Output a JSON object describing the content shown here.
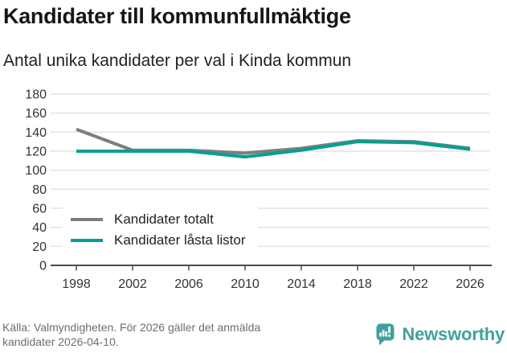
{
  "header": {
    "title": "Kandidater till kommunfullmäktige",
    "subtitle": "Antal unika kandidater per val i Kinda kommun"
  },
  "chart_data": {
    "type": "line",
    "title": "Kandidater till kommunfullmäktige",
    "subtitle": "Antal unika kandidater per val i Kinda kommun",
    "categories": [
      1998,
      2002,
      2006,
      2010,
      2014,
      2018,
      2022,
      2026
    ],
    "series": [
      {
        "name": "Kandidater totalt",
        "color": "#7e7e7e",
        "values": [
          143,
          121,
          121,
          118,
          123,
          131,
          130,
          123
        ]
      },
      {
        "name": "Kandidater låsta listor",
        "color": "#00a094",
        "values": [
          120,
          120,
          120,
          114,
          121,
          130,
          129,
          122
        ]
      }
    ],
    "xlabel": "",
    "ylabel": "",
    "ylim": [
      0,
      180
    ],
    "ytick_step": 20,
    "grid": "horizontal",
    "legend_position": "inside-bottom-left",
    "axis_color": "#4a4a4a",
    "grid_color": "#e2e2e2",
    "tick_label_color": "#333333"
  },
  "footer": {
    "source_line1": "Källa: Valmyndigheten. För 2026 gäller det anmälda",
    "source_line2": "kandidater 2026-04-10.",
    "brand": "Newsworthy",
    "brand_color": "#3fa29c"
  }
}
